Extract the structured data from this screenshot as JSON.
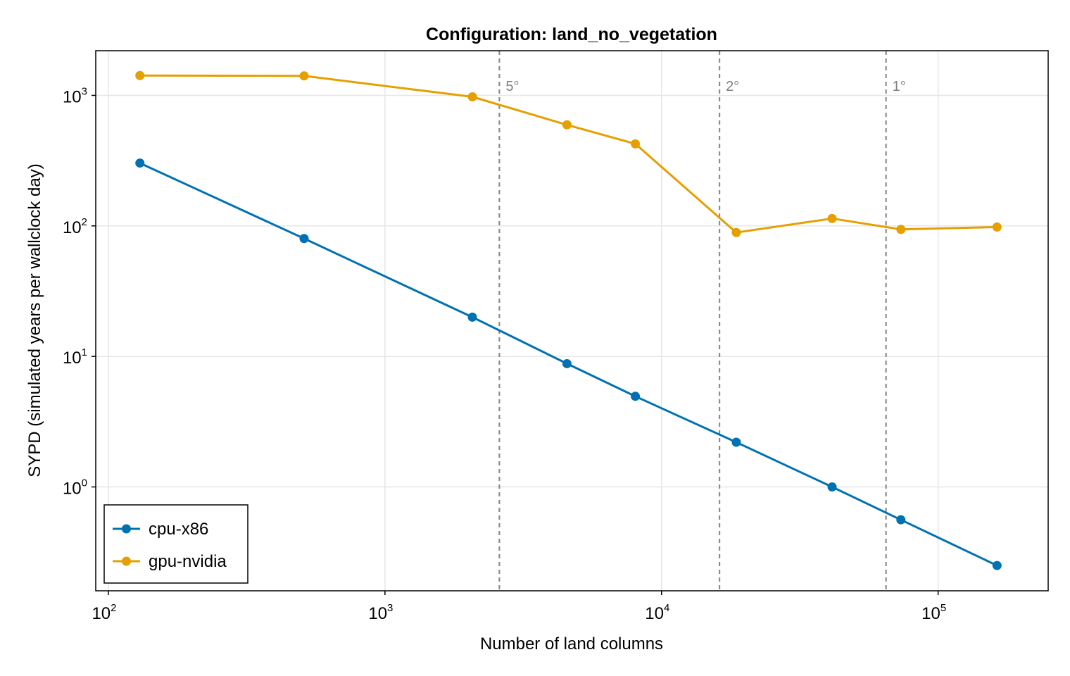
{
  "chart_data": {
    "type": "line",
    "title": "Configuration: land_no_vegetation",
    "xlabel": "Number of land columns",
    "ylabel": "SYPD (simulated years per wallclock day)",
    "xscale": "log",
    "yscale": "log",
    "xlim": [
      90,
      250000
    ],
    "ylim": [
      0.16,
      2200
    ],
    "grid": true,
    "legend_position": "bottom-left",
    "x_ticks": [
      {
        "value": 100,
        "base": "10",
        "exp": "2"
      },
      {
        "value": 1000,
        "base": "10",
        "exp": "3"
      },
      {
        "value": 10000,
        "base": "10",
        "exp": "4"
      },
      {
        "value": 100000,
        "base": "10",
        "exp": "5"
      }
    ],
    "y_ticks": [
      {
        "value": 1,
        "base": "10",
        "exp": "0"
      },
      {
        "value": 10,
        "base": "10",
        "exp": "1"
      },
      {
        "value": 100,
        "base": "10",
        "exp": "2"
      },
      {
        "value": 1000,
        "base": "10",
        "exp": "3"
      }
    ],
    "vlines": [
      {
        "x": 2592,
        "label": "5°"
      },
      {
        "x": 16200,
        "label": "2°"
      },
      {
        "x": 64800,
        "label": "1°"
      }
    ],
    "series": [
      {
        "name": "cpu-x86",
        "color": "#0072b2",
        "x": [
          130,
          510,
          2070,
          4550,
          8040,
          18630,
          41370,
          73350,
          163300
        ],
        "y": [
          303,
          80,
          20,
          8.8,
          4.95,
          2.2,
          1.0,
          0.56,
          0.25
        ]
      },
      {
        "name": "gpu-nvidia",
        "color": "#e69f00",
        "x": [
          130,
          510,
          2070,
          4550,
          8040,
          18630,
          41370,
          73350,
          163300
        ],
        "y": [
          1420,
          1410,
          975,
          595,
          425,
          89,
          114,
          94,
          98
        ]
      }
    ]
  }
}
